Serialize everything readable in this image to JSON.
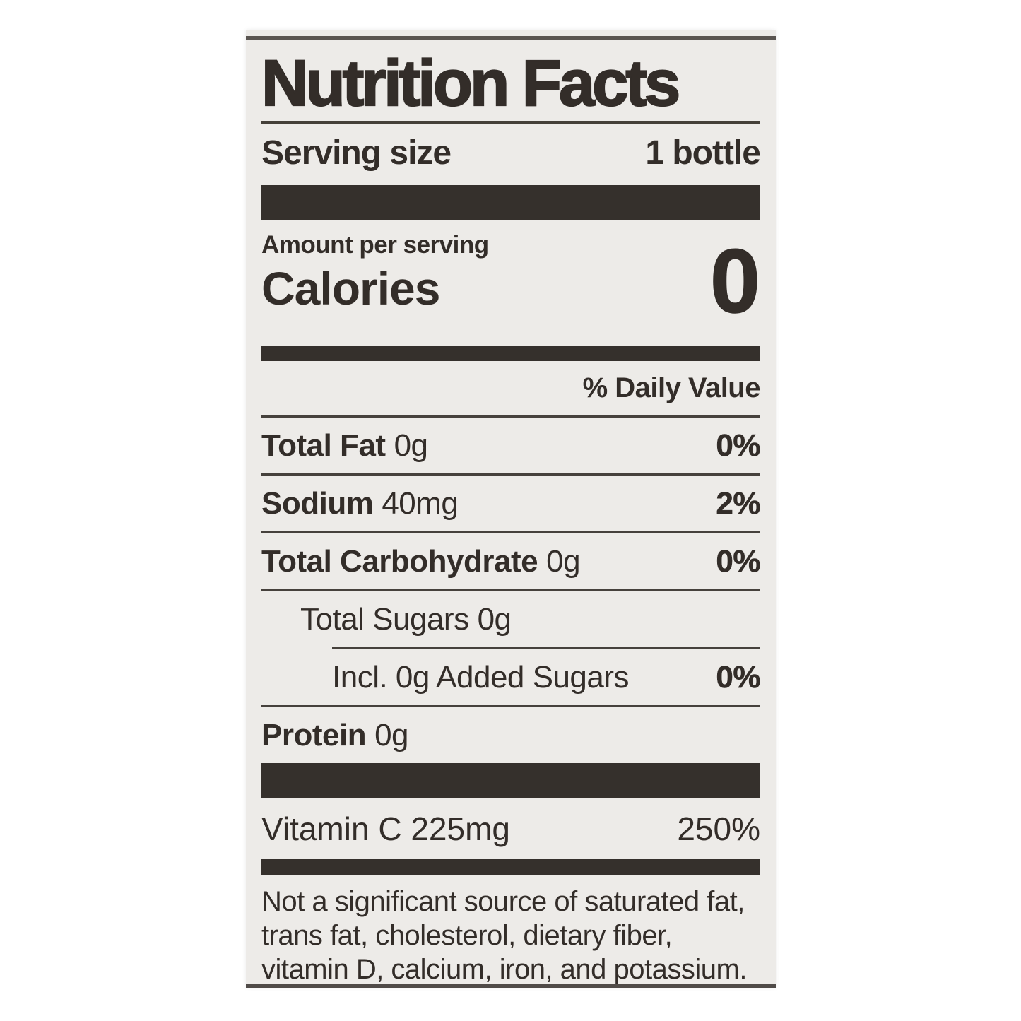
{
  "label": {
    "title": "Nutrition Facts",
    "serving": {
      "label": "Serving size",
      "value": "1 bottle"
    },
    "calories": {
      "amount_per_serving": "Amount per serving",
      "label": "Calories",
      "value": "0"
    },
    "daily_value_header": "% Daily Value",
    "rows": [
      {
        "name": "Total Fat",
        "amount": "0g",
        "dv": "0%"
      },
      {
        "name": "Sodium",
        "amount": "40mg",
        "dv": "2%"
      },
      {
        "name": "Total Carbohydrate",
        "amount": "0g",
        "dv": "0%"
      },
      {
        "name": "Total Sugars",
        "amount": "0g",
        "dv": ""
      },
      {
        "name": "Incl. 0g Added Sugars",
        "amount": "",
        "dv": "0%"
      },
      {
        "name": "Protein",
        "amount": "0g",
        "dv": ""
      }
    ],
    "micronutrients": [
      {
        "name": "Vitamin C 225mg",
        "dv": "250%"
      }
    ],
    "footnote_lines": [
      "Not a significant source of saturated fat,",
      "trans fat, cholesterol, dietary fiber,",
      "vitamin D, calcium, iron, and potassium."
    ],
    "colors": {
      "ink": "#332d29",
      "label_bg": "#edebe8",
      "page_bg": "#ffffff",
      "edge": "#5a5551"
    }
  }
}
